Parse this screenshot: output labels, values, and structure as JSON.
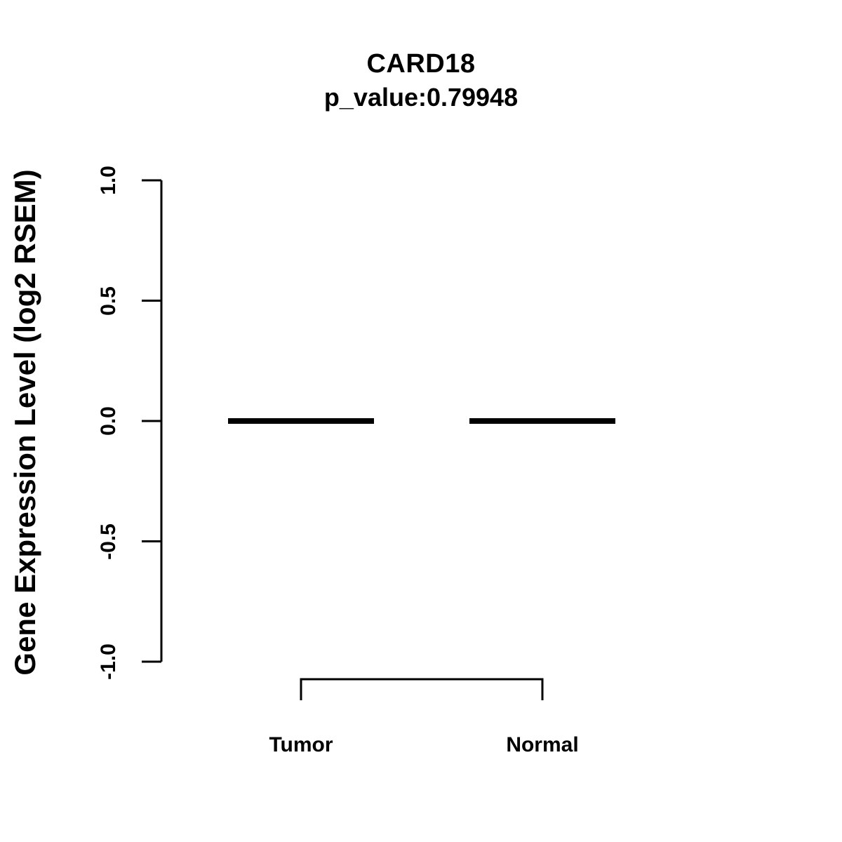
{
  "page": {
    "background_color": "#ffffff",
    "foreground_color": "#000000"
  },
  "chart_data": {
    "type": "boxplot",
    "title": "CARD18",
    "subtitle": "p_value:0.79948",
    "ylabel": "Gene Expression Level (log2 RSEM)",
    "xlabel": "",
    "ylim": [
      -1.0,
      1.0
    ],
    "yticks": [
      {
        "value": 1.0,
        "label": "1.0"
      },
      {
        "value": 0.5,
        "label": "0.5"
      },
      {
        "value": 0.0,
        "label": "0.0"
      },
      {
        "value": -0.5,
        "label": "-0.5"
      },
      {
        "value": -1.0,
        "label": "-1.0"
      }
    ],
    "categories": [
      "Tumor",
      "Normal"
    ],
    "series": [
      {
        "name": "Tumor",
        "median": 0.0,
        "q1": 0.0,
        "q3": 0.0,
        "whisker_low": 0.0,
        "whisker_high": 0.0
      },
      {
        "name": "Normal",
        "median": 0.0,
        "q1": 0.0,
        "q3": 0.0,
        "whisker_low": 0.0,
        "whisker_high": 0.0
      }
    ],
    "grid": false,
    "legend": false,
    "annotations": [
      {
        "type": "comparison-bracket",
        "from": "Tumor",
        "to": "Normal"
      }
    ]
  }
}
